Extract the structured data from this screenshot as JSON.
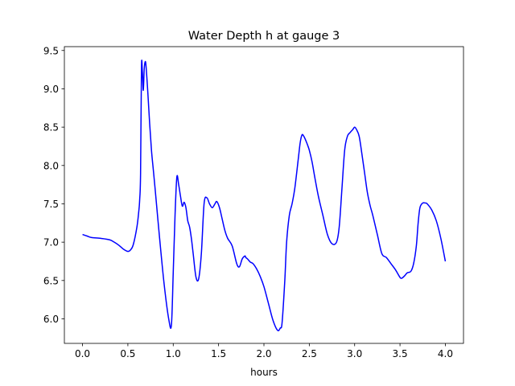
{
  "chart_data": {
    "type": "line",
    "title": "Water Depth h at gauge 3",
    "xlabel": "hours",
    "ylabel": "",
    "xlim": [
      -0.2,
      4.2
    ],
    "ylim": [
      5.68,
      9.55
    ],
    "xticks": [
      "0.0",
      "0.5",
      "1.0",
      "1.5",
      "2.0",
      "2.5",
      "3.0",
      "3.5",
      "4.0"
    ],
    "yticks": [
      "6.0",
      "6.5",
      "7.0",
      "7.5",
      "8.0",
      "8.5",
      "9.0",
      "9.5"
    ],
    "grid": false,
    "legend": "none",
    "series": [
      {
        "color": "#0000ff",
        "x": [
          0.0,
          0.05,
          0.1,
          0.2,
          0.3,
          0.35,
          0.4,
          0.45,
          0.5,
          0.53,
          0.56,
          0.6,
          0.62,
          0.63,
          0.64,
          0.65,
          0.66,
          0.67,
          0.68,
          0.69,
          0.7,
          0.72,
          0.74,
          0.76,
          0.78,
          0.8,
          0.85,
          0.9,
          0.95,
          0.98,
          1.0,
          1.02,
          1.04,
          1.06,
          1.08,
          1.1,
          1.12,
          1.14,
          1.16,
          1.18,
          1.2,
          1.22,
          1.25,
          1.28,
          1.31,
          1.34,
          1.37,
          1.4,
          1.43,
          1.46,
          1.48,
          1.51,
          1.54,
          1.57,
          1.6,
          1.65,
          1.7,
          1.73,
          1.76,
          1.79,
          1.8,
          1.82,
          1.85,
          1.88,
          1.92,
          1.96,
          2.0,
          2.05,
          2.1,
          2.15,
          2.18,
          2.2,
          2.23,
          2.25,
          2.28,
          2.31,
          2.34,
          2.38,
          2.4,
          2.42,
          2.44,
          2.46,
          2.48,
          2.5,
          2.53,
          2.56,
          2.6,
          2.65,
          2.7,
          2.75,
          2.8,
          2.83,
          2.86,
          2.89,
          2.92,
          2.95,
          2.98,
          3.0,
          3.02,
          3.05,
          3.08,
          3.11,
          3.14,
          3.17,
          3.2,
          3.25,
          3.3,
          3.35,
          3.4,
          3.45,
          3.5,
          3.52,
          3.55,
          3.58,
          3.62,
          3.65,
          3.68,
          3.7,
          3.72,
          3.75,
          3.78,
          3.8,
          3.85,
          3.9,
          3.95,
          4.0
        ],
        "y": [
          7.1,
          7.08,
          7.06,
          7.05,
          7.03,
          7.0,
          6.96,
          6.91,
          6.88,
          6.9,
          6.97,
          7.2,
          7.4,
          7.55,
          7.9,
          9.28,
          9.22,
          8.98,
          9.25,
          9.35,
          9.3,
          8.95,
          8.55,
          8.2,
          7.95,
          7.7,
          7.05,
          6.45,
          6.0,
          5.92,
          6.6,
          7.35,
          7.85,
          7.75,
          7.6,
          7.47,
          7.52,
          7.45,
          7.28,
          7.2,
          7.05,
          6.85,
          6.55,
          6.52,
          6.85,
          7.5,
          7.58,
          7.5,
          7.45,
          7.5,
          7.53,
          7.45,
          7.3,
          7.15,
          7.05,
          6.95,
          6.72,
          6.68,
          6.78,
          6.82,
          6.8,
          6.78,
          6.74,
          6.72,
          6.65,
          6.55,
          6.42,
          6.2,
          5.98,
          5.85,
          5.88,
          5.95,
          6.5,
          7.0,
          7.35,
          7.5,
          7.7,
          8.1,
          8.3,
          8.4,
          8.38,
          8.33,
          8.27,
          8.2,
          8.05,
          7.85,
          7.6,
          7.35,
          7.1,
          6.98,
          7.0,
          7.2,
          7.7,
          8.2,
          8.38,
          8.43,
          8.47,
          8.5,
          8.47,
          8.38,
          8.15,
          7.9,
          7.65,
          7.48,
          7.35,
          7.1,
          6.85,
          6.8,
          6.72,
          6.64,
          6.54,
          6.53,
          6.56,
          6.6,
          6.62,
          6.72,
          6.95,
          7.25,
          7.45,
          7.51,
          7.51,
          7.5,
          7.42,
          7.28,
          7.05,
          6.75
        ]
      }
    ]
  }
}
